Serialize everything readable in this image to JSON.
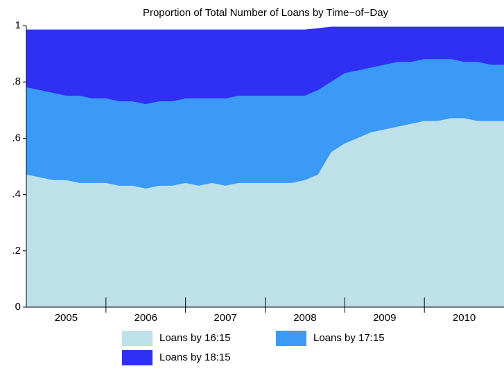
{
  "chart_data": {
    "type": "area",
    "title": "Proportion of Total Number of Loans by Time−of−Day",
    "x": [
      2005,
      2005.167,
      2005.333,
      2005.5,
      2005.667,
      2005.833,
      2006,
      2006.167,
      2006.333,
      2006.5,
      2006.667,
      2006.833,
      2007,
      2007.167,
      2007.333,
      2007.5,
      2007.667,
      2007.833,
      2008,
      2008.167,
      2008.333,
      2008.5,
      2008.667,
      2008.833,
      2009,
      2009.167,
      2009.333,
      2009.5,
      2009.667,
      2009.833,
      2010,
      2010.167,
      2010.333,
      2010.5,
      2010.667,
      2010.833,
      2011
    ],
    "series": [
      {
        "name": "Loans by 16:15",
        "color": "#bee0e9",
        "values": [
          0.47,
          0.46,
          0.45,
          0.45,
          0.44,
          0.44,
          0.44,
          0.43,
          0.43,
          0.42,
          0.43,
          0.43,
          0.44,
          0.43,
          0.44,
          0.43,
          0.44,
          0.44,
          0.44,
          0.44,
          0.44,
          0.45,
          0.47,
          0.55,
          0.58,
          0.6,
          0.62,
          0.63,
          0.64,
          0.65,
          0.66,
          0.66,
          0.67,
          0.67,
          0.66,
          0.66,
          0.66
        ]
      },
      {
        "name": "Loans by 17:15",
        "color": "#3a9af5",
        "values": [
          0.78,
          0.77,
          0.76,
          0.75,
          0.75,
          0.74,
          0.74,
          0.73,
          0.73,
          0.72,
          0.73,
          0.73,
          0.74,
          0.74,
          0.74,
          0.74,
          0.75,
          0.75,
          0.75,
          0.75,
          0.75,
          0.75,
          0.77,
          0.8,
          0.83,
          0.84,
          0.85,
          0.86,
          0.87,
          0.87,
          0.88,
          0.88,
          0.88,
          0.87,
          0.87,
          0.86,
          0.86
        ]
      },
      {
        "name": "Loans by 18:15",
        "color": "#3030f2",
        "values": [
          0.985,
          0.985,
          0.985,
          0.985,
          0.985,
          0.985,
          0.985,
          0.985,
          0.985,
          0.985,
          0.985,
          0.985,
          0.985,
          0.985,
          0.985,
          0.985,
          0.985,
          0.985,
          0.985,
          0.985,
          0.985,
          0.985,
          0.99,
          0.995,
          0.995,
          0.995,
          0.995,
          0.995,
          0.995,
          0.995,
          0.995,
          0.995,
          0.995,
          0.995,
          0.995,
          0.995,
          0.995
        ]
      }
    ],
    "xlim": [
      2005,
      2011
    ],
    "xticks": [
      {
        "value": 2005.5,
        "label": "2005"
      },
      {
        "value": 2006.5,
        "label": "2006"
      },
      {
        "value": 2007.5,
        "label": "2007"
      },
      {
        "value": 2008.5,
        "label": "2008"
      },
      {
        "value": 2009.5,
        "label": "2009"
      },
      {
        "value": 2010.5,
        "label": "2010"
      }
    ],
    "xmajorticks": [
      2006,
      2007,
      2008,
      2009,
      2010
    ],
    "ylim": [
      0,
      1
    ],
    "yticks": [
      0,
      {
        "value": 0.2,
        "label": ".2"
      },
      {
        "value": 0.4,
        "label": ".4"
      },
      {
        "value": 0.6,
        "label": ".6"
      },
      {
        "value": 0.8,
        "label": ".8"
      },
      1
    ],
    "grid": false,
    "legend": "bottom"
  }
}
